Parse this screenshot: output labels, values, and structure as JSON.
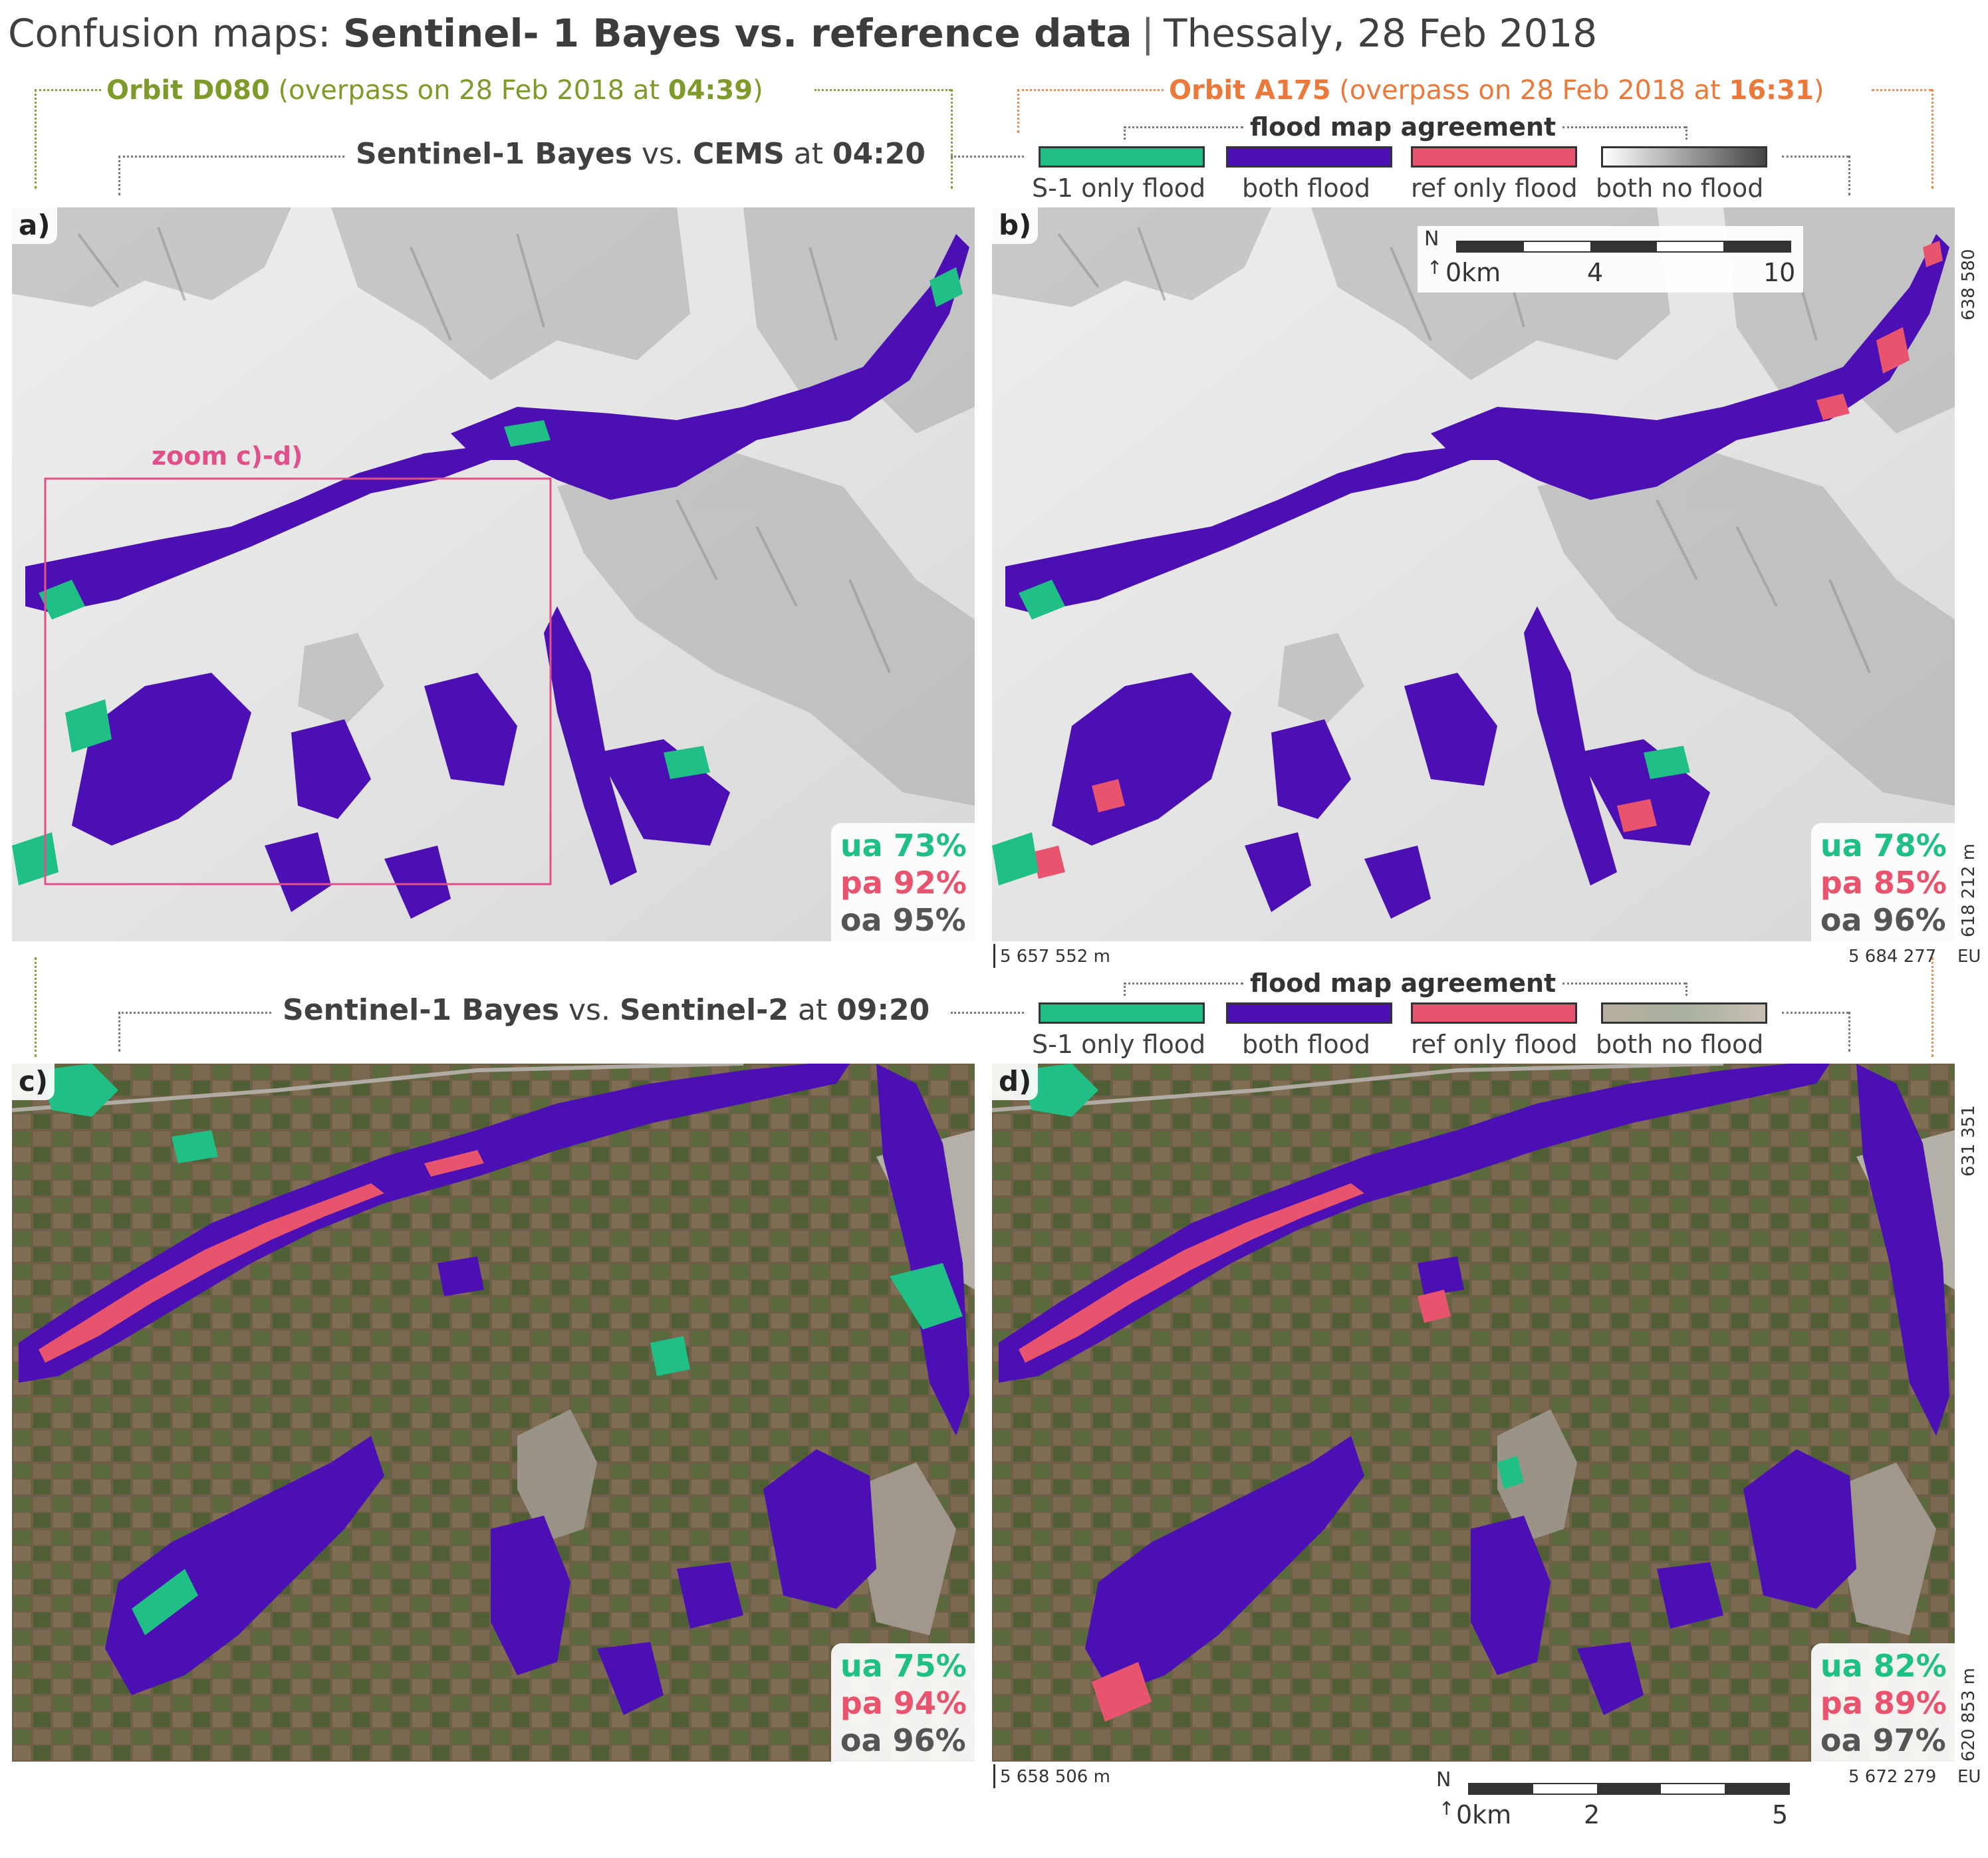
{
  "title": {
    "prefix": "Confusion maps: ",
    "bold": "Sentinel- 1 Bayes vs. reference data",
    "separator": "|",
    "suffix": "Thessaly, 28 Feb 2018"
  },
  "orbits": {
    "left": {
      "name": "Orbit D080",
      "detail": " (overpass on 28 Feb 2018 at ",
      "time": "04:39",
      "close": ")",
      "color": "#7d9a2a"
    },
    "right": {
      "name": "Orbit A175",
      "detail": " (overpass on 28 Feb 2018 at ",
      "time": "16:31",
      "close": ")",
      "color": "#ea7a3c"
    }
  },
  "comparisons": {
    "top": {
      "a": "Sentinel-1 Bayes",
      "vs": " vs. ",
      "b": "CEMS",
      "at": " at ",
      "time": "04:20"
    },
    "bottom": {
      "a": "Sentinel-1 Bayes",
      "vs": " vs. ",
      "b": "Sentinel-2",
      "at": " at ",
      "time": "09:20"
    }
  },
  "legend": {
    "title": "flood map agreement",
    "items": [
      {
        "label": "S-1 only flood",
        "color": "#1fbf86"
      },
      {
        "label": "both flood",
        "color": "#4b0fb4"
      },
      {
        "label": "ref only flood",
        "color": "#e8546e"
      },
      {
        "label": "both no flood",
        "color": "#bdbdbd"
      }
    ]
  },
  "panels": [
    {
      "label": "a)",
      "ua": "ua 73%",
      "pa": "pa 92%",
      "oa": "oa 95%",
      "base": "hillshade"
    },
    {
      "label": "b)",
      "ua": "ua 78%",
      "pa": "pa 85%",
      "oa": "oa 96%",
      "base": "hillshade"
    },
    {
      "label": "c)",
      "ua": "ua 75%",
      "pa": "pa 94%",
      "oa": "oa 96%",
      "base": "satellite"
    },
    {
      "label": "d)",
      "ua": "ua 82%",
      "pa": "pa 89%",
      "oa": "oa 97%",
      "base": "satellite"
    }
  ],
  "metric_colors": {
    "ua": "#1fbf86",
    "pa": "#e8546e",
    "oa": "#555555"
  },
  "zoom_label": "zoom c)-d)",
  "coordinates": {
    "top": {
      "x_left": "5 657 552 m",
      "x_right": "5 684 277",
      "unit": "EU",
      "y_top": "638 580",
      "y_bottom": "618 212 m"
    },
    "bottom": {
      "x_left": "5 658 506 m",
      "x_right": "5 672 279",
      "unit": "EU",
      "y_top": "631 351",
      "y_bottom": "620 853 m"
    }
  },
  "scalebars": {
    "top": {
      "north": "N",
      "labels": [
        "0km",
        "4",
        "10"
      ]
    },
    "bottom": {
      "north": "N",
      "labels": [
        "0km",
        "2",
        "5"
      ]
    }
  }
}
